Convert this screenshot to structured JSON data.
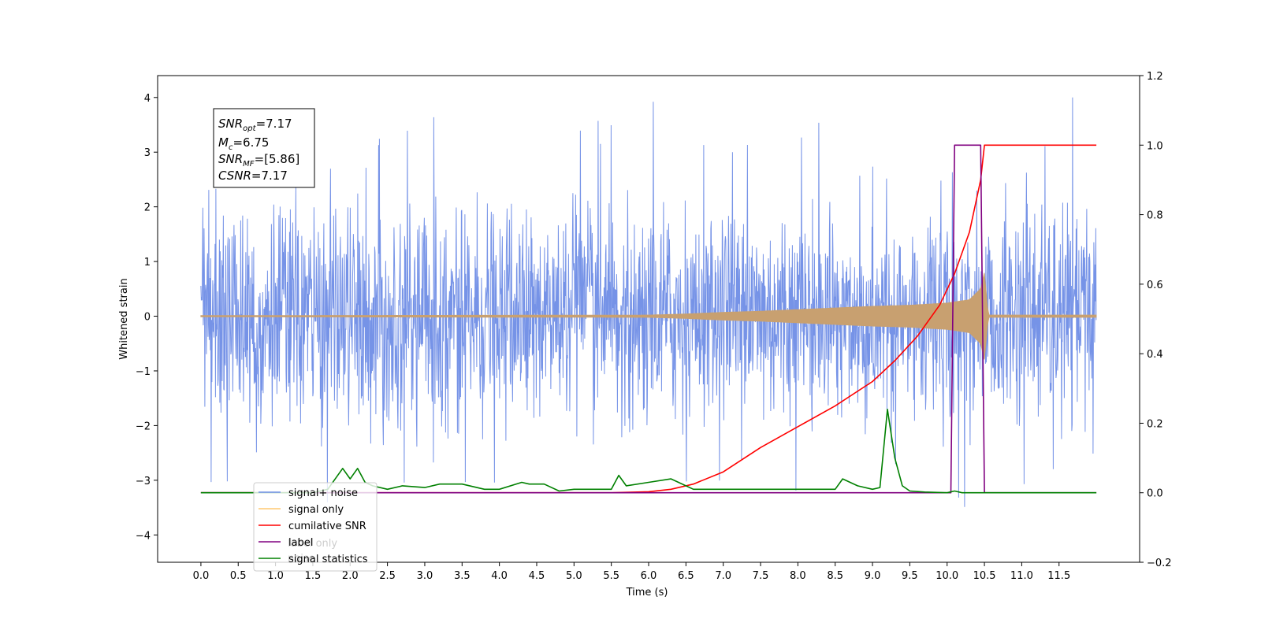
{
  "chart_data": {
    "type": "line",
    "title": "",
    "xlabel": "Time (s)",
    "ylabel": "Whitened strain",
    "y2label": "",
    "xlim": [
      -0.58,
      12.58
    ],
    "ylim": [
      -4.5,
      4.4
    ],
    "y2lim": [
      -0.2,
      1.2
    ],
    "xticks": [
      "0.0",
      "0.5",
      "1.0",
      "1.5",
      "2.0",
      "2.5",
      "3.0",
      "3.5",
      "4.0",
      "4.5",
      "5.0",
      "5.5",
      "6.0",
      "6.5",
      "7.0",
      "7.5",
      "8.0",
      "8.5",
      "9.0",
      "9.5",
      "10.0",
      "10.5",
      "11.0",
      "11.5"
    ],
    "yticks": [
      "4",
      "3",
      "2",
      "1",
      "0",
      "−1",
      "−2",
      "−3",
      "−4"
    ],
    "y2ticks": [
      "1.2",
      "1.0",
      "0.8",
      "0.6",
      "0.4",
      "0.2",
      "0.0",
      "−0.2"
    ],
    "grid": false,
    "legend_position": "lower-left",
    "annotation": {
      "lines": [
        {
          "base": "SNR",
          "sub": "opt",
          "value": "=7.17"
        },
        {
          "base": "M",
          "sub": "c",
          "value": "=6.75"
        },
        {
          "base": "SNR",
          "sub": "MF",
          "value": "=[5.86]"
        },
        {
          "base": "CSNR",
          "sub": "",
          "value": "=7.17"
        }
      ]
    },
    "legend": [
      {
        "name": "signal+ noise",
        "color": "#6f8de6"
      },
      {
        "name": "signal only",
        "color": "#ffc870"
      },
      {
        "name": "cumilative SNR",
        "color": "#ff0000"
      },
      {
        "name": "label",
        "color": "#800080"
      },
      {
        "name": "signal statistics",
        "color": "#008000"
      }
    ],
    "overlap_text": [
      {
        "text": "label only",
        "color": "#cccccc"
      },
      {
        "text": "noise",
        "color": "#cccccc"
      }
    ],
    "series": [
      {
        "name": "signal+ noise",
        "axis": "left",
        "color": "#6f8de6",
        "kind": "gaussian_noise",
        "x_range": [
          0,
          12
        ],
        "std": 1.0,
        "peak_max": 4.0,
        "peak_min": -4.1
      },
      {
        "name": "signal only",
        "axis": "left",
        "color": "#c8a070",
        "kind": "chirp_envelope",
        "x": [
          0,
          6.0,
          6.5,
          7.0,
          7.5,
          8.0,
          8.5,
          9.0,
          9.5,
          10.0,
          10.3,
          10.45,
          10.5,
          10.55,
          12.0
        ],
        "amplitude": [
          0.01,
          0.02,
          0.04,
          0.07,
          0.09,
          0.12,
          0.15,
          0.18,
          0.2,
          0.24,
          0.3,
          0.5,
          0.8,
          0.02,
          0.02
        ]
      },
      {
        "name": "cumilative SNR",
        "axis": "right",
        "color": "#ff0000",
        "x": [
          0,
          5.5,
          6.0,
          6.3,
          6.6,
          7.0,
          7.5,
          8.0,
          8.5,
          9.0,
          9.3,
          9.6,
          9.9,
          10.1,
          10.3,
          10.45,
          10.5,
          12.0
        ],
        "y": [
          0.0,
          0.0,
          0.003,
          0.01,
          0.025,
          0.06,
          0.13,
          0.19,
          0.25,
          0.32,
          0.38,
          0.45,
          0.54,
          0.63,
          0.75,
          0.9,
          1.0,
          1.0
        ]
      },
      {
        "name": "label",
        "axis": "right",
        "color": "#800080",
        "x": [
          0,
          10.05,
          10.1,
          10.45,
          10.5,
          12.0
        ],
        "y": [
          0,
          0,
          1,
          1,
          0,
          0
        ]
      },
      {
        "name": "signal statistics",
        "axis": "right",
        "color": "#008000",
        "x": [
          0,
          0.5,
          1.0,
          1.5,
          1.7,
          1.9,
          2.0,
          2.1,
          2.2,
          2.3,
          2.5,
          2.7,
          3.0,
          3.2,
          3.5,
          3.8,
          4.0,
          4.3,
          4.4,
          4.6,
          4.8,
          5.0,
          5.2,
          5.5,
          5.6,
          5.7,
          6.0,
          6.3,
          6.4,
          6.6,
          6.8,
          7.0,
          7.5,
          8.0,
          8.5,
          8.6,
          8.8,
          9.0,
          9.1,
          9.2,
          9.3,
          9.4,
          9.5,
          9.7,
          10.0,
          10.1,
          10.2,
          10.5,
          11.0,
          12.0
        ],
        "y": [
          0.0,
          0.0,
          0.0,
          0.0,
          0.01,
          0.07,
          0.04,
          0.07,
          0.03,
          0.02,
          0.01,
          0.02,
          0.015,
          0.025,
          0.025,
          0.01,
          0.01,
          0.03,
          0.025,
          0.025,
          0.005,
          0.01,
          0.01,
          0.01,
          0.05,
          0.02,
          0.03,
          0.04,
          0.03,
          0.01,
          0.01,
          0.01,
          0.01,
          0.01,
          0.01,
          0.04,
          0.02,
          0.01,
          0.015,
          0.24,
          0.1,
          0.02,
          0.005,
          0.002,
          0.0,
          0.005,
          0.0,
          0.0,
          0.0,
          0.0
        ]
      }
    ]
  }
}
